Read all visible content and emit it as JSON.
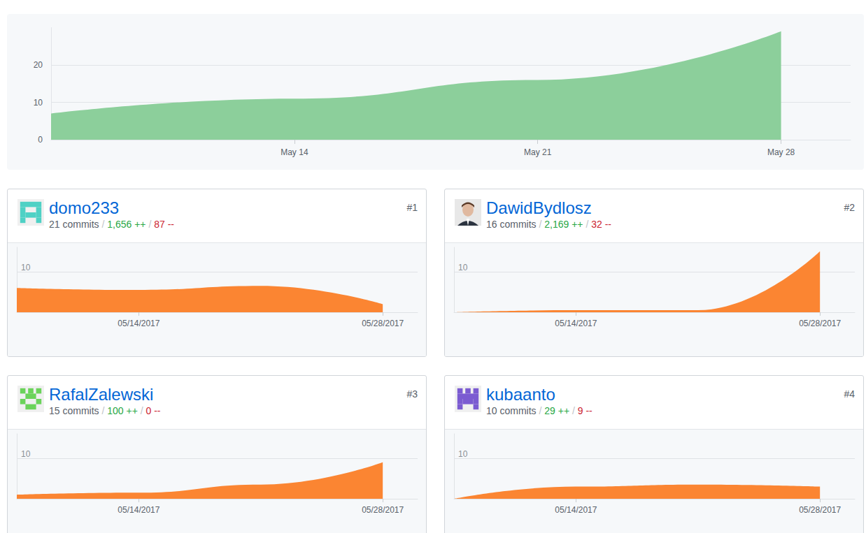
{
  "chart_data": [
    {
      "type": "area",
      "x": [
        7,
        14,
        21,
        28
      ],
      "values": [
        7,
        11,
        16,
        29
      ],
      "color": "#8ccf9b",
      "xlim": [
        7,
        30
      ],
      "xticks": [
        {
          "value": 14,
          "label": "May 14"
        },
        {
          "value": 21,
          "label": "May 21"
        },
        {
          "value": 28,
          "label": "May 28"
        }
      ],
      "ylim": [
        0,
        30
      ],
      "yticks": [
        0,
        10,
        20
      ],
      "grid": true,
      "line_style": "smooth"
    },
    {
      "type": "area",
      "title": "domo233",
      "subtitle": "21 commits / 1,656 ++ / 87 --",
      "annotations": [
        "#1"
      ],
      "x": [
        7,
        14,
        21,
        28
      ],
      "values": [
        6,
        5.5,
        6.5,
        2
      ],
      "color": "#fb8532",
      "xlim": [
        7,
        30
      ],
      "xticks": [
        {
          "value": 14,
          "label": "05/14/2017"
        },
        {
          "value": 28,
          "label": "05/28/2017"
        }
      ],
      "ylim": [
        0,
        16
      ],
      "yticks": [
        10
      ],
      "grid": true,
      "line_style": "smooth"
    },
    {
      "type": "area",
      "title": "DawidBydlosz",
      "subtitle": "16 commits / 2,169 ++ / 32 --",
      "annotations": [
        "#2"
      ],
      "x": [
        7,
        14,
        21,
        28
      ],
      "values": [
        0,
        0.5,
        0.5,
        15
      ],
      "color": "#fb8532",
      "xlim": [
        7,
        30
      ],
      "xticks": [
        {
          "value": 14,
          "label": "05/14/2017"
        },
        {
          "value": 28,
          "label": "05/28/2017"
        }
      ],
      "ylim": [
        0,
        16
      ],
      "yticks": [
        10
      ],
      "grid": true,
      "line_style": "smooth"
    },
    {
      "type": "area",
      "title": "RafalZalewski",
      "subtitle": "15 commits / 100 ++ / 0 --",
      "annotations": [
        "#3"
      ],
      "x": [
        7,
        14,
        21,
        28
      ],
      "values": [
        1,
        1.5,
        3.5,
        9
      ],
      "color": "#fb8532",
      "xlim": [
        7,
        30
      ],
      "xticks": [
        {
          "value": 14,
          "label": "05/14/2017"
        },
        {
          "value": 28,
          "label": "05/28/2017"
        }
      ],
      "ylim": [
        0,
        16
      ],
      "yticks": [
        10
      ],
      "grid": true,
      "line_style": "smooth"
    },
    {
      "type": "area",
      "title": "kubaanto",
      "subtitle": "10 commits / 29 ++ / 9 --",
      "annotations": [
        "#4"
      ],
      "x": [
        7,
        14,
        21,
        28
      ],
      "values": [
        0,
        3,
        3.5,
        3
      ],
      "color": "#fb8532",
      "xlim": [
        7,
        30
      ],
      "xticks": [
        {
          "value": 14,
          "label": "05/14/2017"
        },
        {
          "value": 28,
          "label": "05/28/2017"
        }
      ],
      "ylim": [
        0,
        16
      ],
      "yticks": [
        10
      ],
      "grid": true,
      "line_style": "smooth"
    }
  ]
}
